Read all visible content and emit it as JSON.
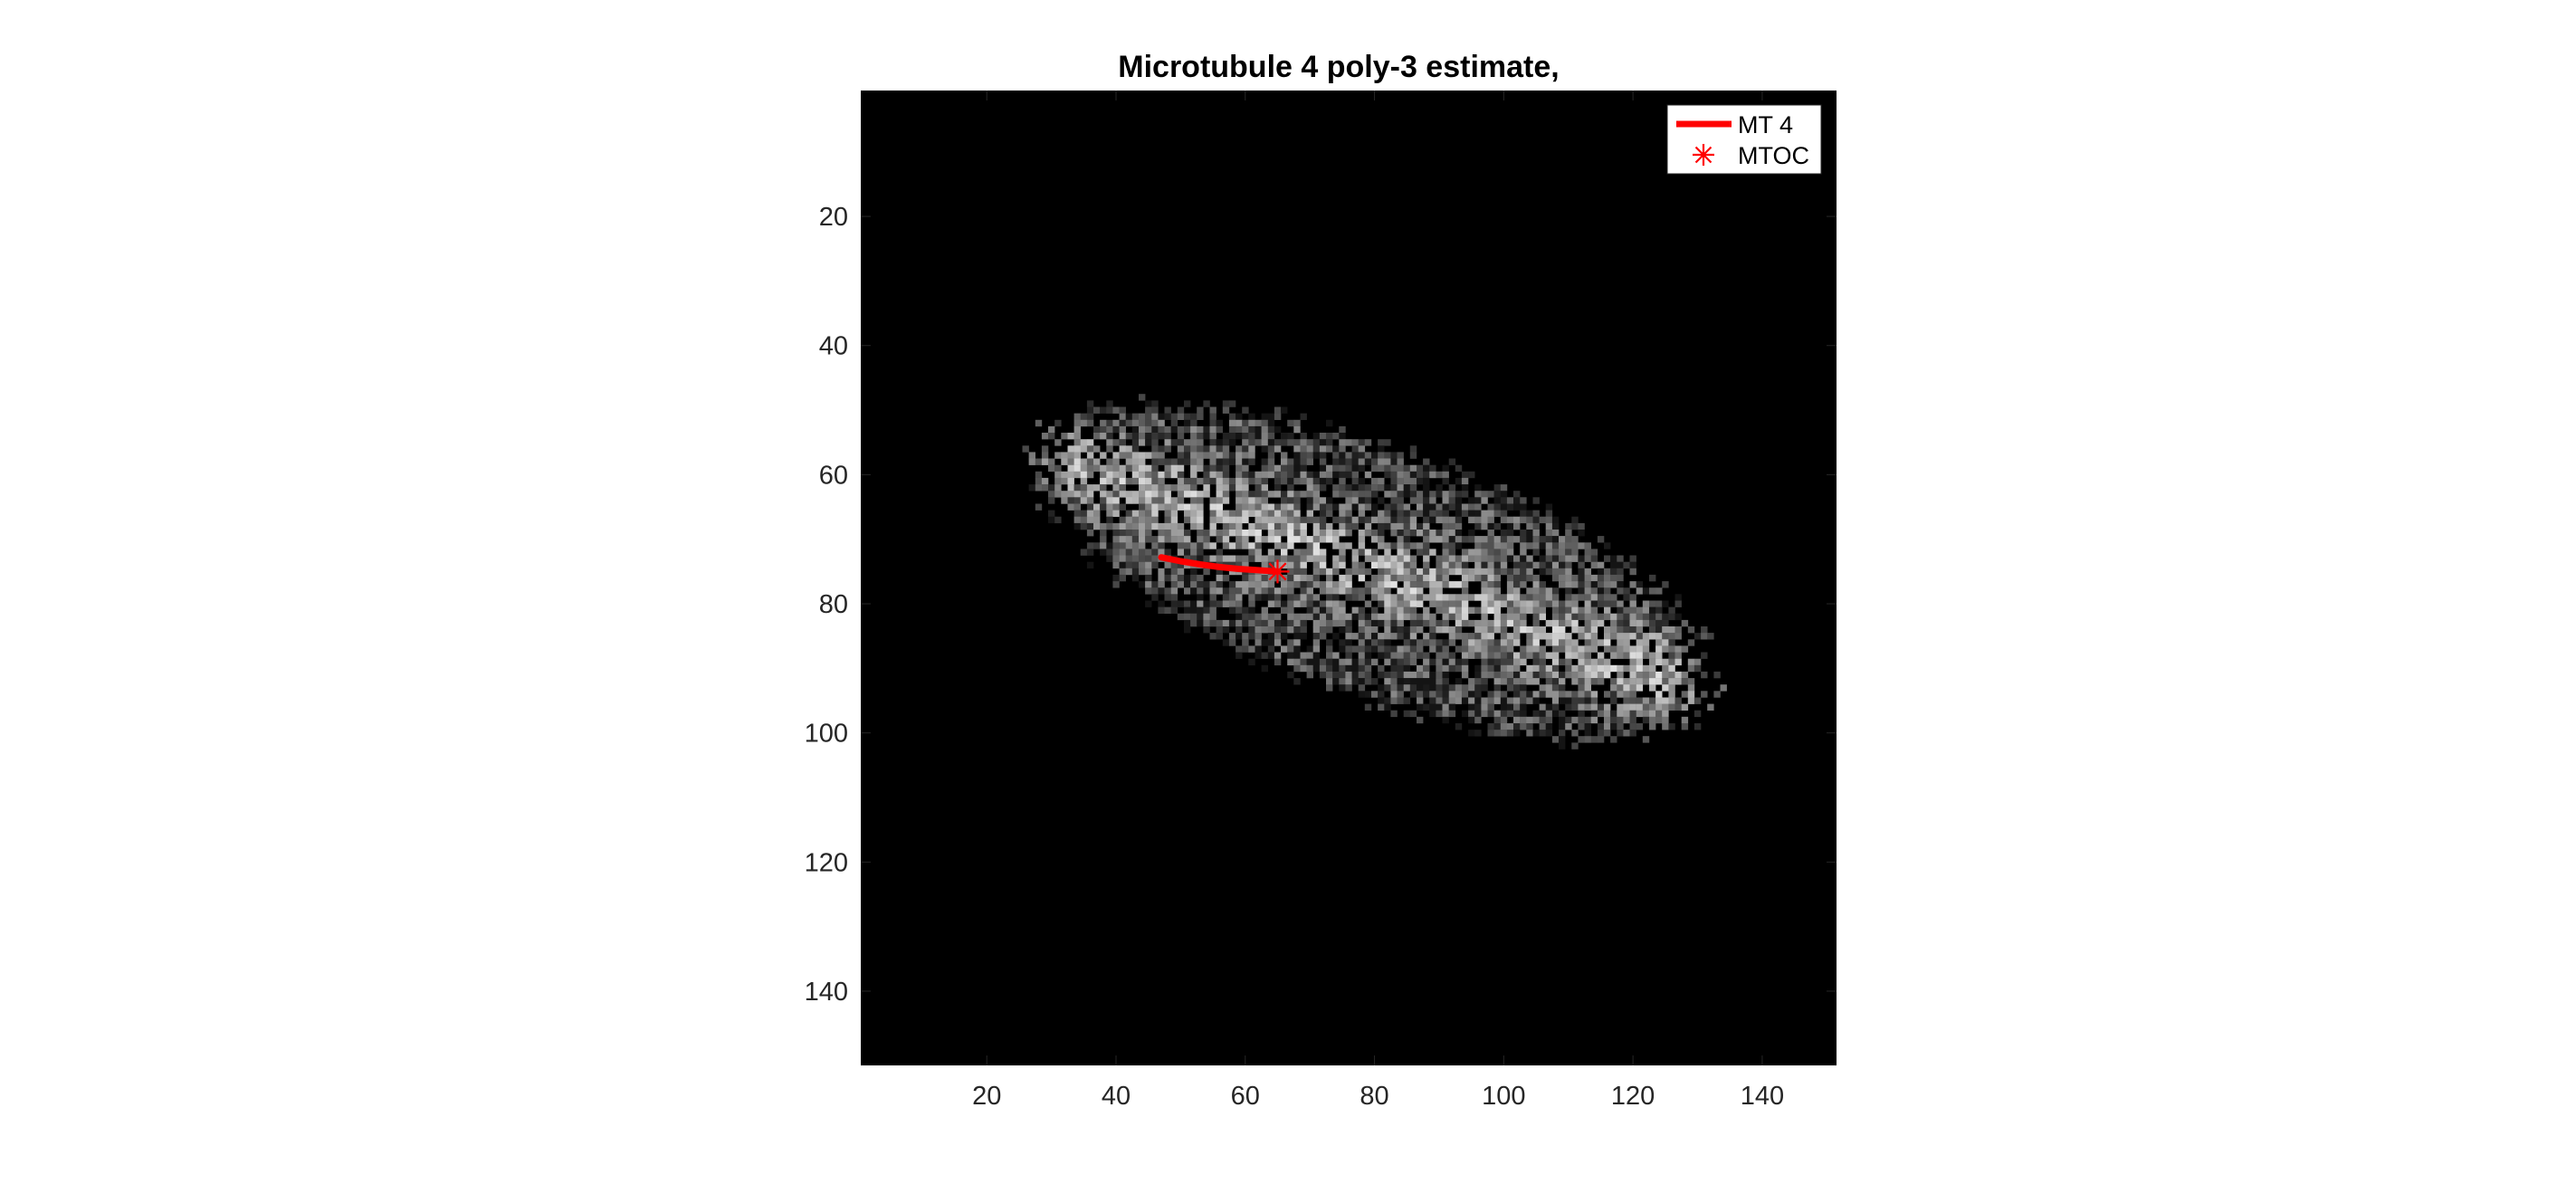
{
  "chart_data": {
    "type": "scatter",
    "title": "Microtubule 4 poly-3 estimate,",
    "xlabel": "",
    "ylabel": "",
    "xlim": [
      0.5,
      151.5
    ],
    "ylim": [
      151.5,
      0.5
    ],
    "y_axis_direction": "reverse",
    "background": "image",
    "image_colormap": "gray",
    "xticks": [
      20,
      40,
      60,
      80,
      100,
      120,
      140
    ],
    "yticks": [
      20,
      40,
      60,
      80,
      100,
      120,
      140
    ],
    "grid": false,
    "legend_position": "top-right",
    "series": [
      {
        "name": "MT 4",
        "kind": "line",
        "color": "#ff0000",
        "x": [
          47,
          50,
          53,
          56,
          59,
          62,
          65
        ],
        "y": [
          72.8,
          73.4,
          73.9,
          74.3,
          74.6,
          74.8,
          75
        ]
      },
      {
        "name": "MTOC",
        "kind": "marker",
        "marker": "asterisk",
        "color": "#ff0000",
        "x": [
          65
        ],
        "y": [
          75
        ]
      }
    ],
    "cell_intensity": {
      "center": [
        80,
        75
      ],
      "semi_axes": [
        54,
        19
      ],
      "rotation_deg": 20
    }
  }
}
